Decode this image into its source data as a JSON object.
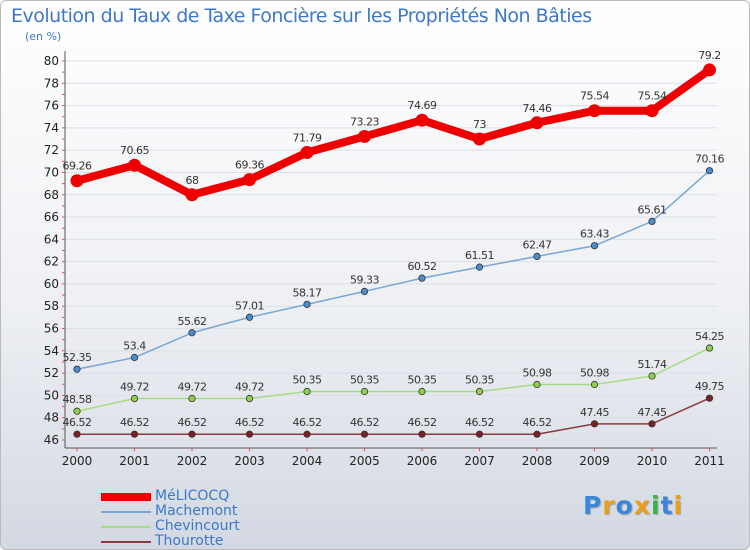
{
  "header": {
    "title": "Evolution du Taux de Taxe Foncière sur les Propriétés Non Bâties",
    "unit": "(en %)"
  },
  "colors": {
    "title": "#3d78c8",
    "axis_text": "#222222",
    "grid": "#dcdfe6",
    "tick": "#e05050"
  },
  "logo": {
    "letters": [
      {
        "ch": "P",
        "color": "#3b86d8"
      },
      {
        "ch": "r",
        "color": "#e8a01c"
      },
      {
        "ch": "o",
        "color": "#3b86d8"
      },
      {
        "ch": "x",
        "color": "#e8a01c"
      },
      {
        "ch": "i",
        "color": "#3cb04a"
      },
      {
        "ch": "t",
        "color": "#3b86d8"
      },
      {
        "ch": "i",
        "color": "#e8a01c"
      }
    ]
  },
  "chart_data": {
    "type": "line",
    "title": "Evolution du Taux de Taxe Foncière sur les Propriétés Non Bâties",
    "ylabel": "(en %)",
    "xlabel": "",
    "ylim": [
      46,
      80
    ],
    "yticks": [
      46,
      48,
      50,
      52,
      54,
      56,
      58,
      60,
      62,
      64,
      66,
      68,
      70,
      72,
      74,
      76,
      78,
      80
    ],
    "grid": true,
    "legend_position": "bottom-left",
    "categories": [
      "2000",
      "2001",
      "2002",
      "2003",
      "2004",
      "2005",
      "2006",
      "2007",
      "2008",
      "2009",
      "2010",
      "2011"
    ],
    "series": [
      {
        "name": "MéLICOCQ",
        "color": "#ee0000",
        "line_color": "#ee0000",
        "bold": true,
        "values": [
          69.26,
          70.65,
          68,
          69.36,
          71.79,
          73.23,
          74.69,
          73,
          74.46,
          75.54,
          75.54,
          79.2
        ],
        "labels": [
          "69.26",
          "70.65",
          "68",
          "69.36",
          "71.79",
          "73.23",
          "74.69",
          "73",
          "74.46",
          "75.54",
          "75.54",
          "79.2"
        ]
      },
      {
        "name": "Machemont",
        "color": "#4a8ed2",
        "line_color": "#7aa6d6",
        "bold": false,
        "values": [
          52.35,
          53.4,
          55.62,
          57.01,
          58.17,
          59.33,
          60.52,
          61.51,
          62.47,
          63.43,
          65.61,
          70.16
        ],
        "labels": [
          "52.35",
          "53.4",
          "55.62",
          "57.01",
          "58.17",
          "59.33",
          "60.52",
          "61.51",
          "62.47",
          "63.43",
          "65.61",
          "70.16"
        ]
      },
      {
        "name": "Chevincourt",
        "color": "#8fd24a",
        "line_color": "#a6dc84",
        "bold": false,
        "values": [
          48.58,
          49.72,
          49.72,
          49.72,
          50.35,
          50.35,
          50.35,
          50.35,
          50.98,
          50.98,
          51.74,
          54.25
        ],
        "labels": [
          "48.58",
          "49.72",
          "49.72",
          "49.72",
          "50.35",
          "50.35",
          "50.35",
          "50.35",
          "50.98",
          "50.98",
          "51.74",
          "54.25"
        ]
      },
      {
        "name": "Thourotte",
        "color": "#7a1f24",
        "line_color": "#8a3a3e",
        "bold": false,
        "values": [
          46.52,
          46.52,
          46.52,
          46.52,
          46.52,
          46.52,
          46.52,
          46.52,
          46.52,
          47.45,
          47.45,
          49.75
        ],
        "labels": [
          "46.52",
          "46.52",
          "46.52",
          "46.52",
          "46.52",
          "46.52",
          "46.52",
          "46.52",
          "46.52",
          "47.45",
          "47.45",
          "49.75"
        ]
      }
    ]
  }
}
